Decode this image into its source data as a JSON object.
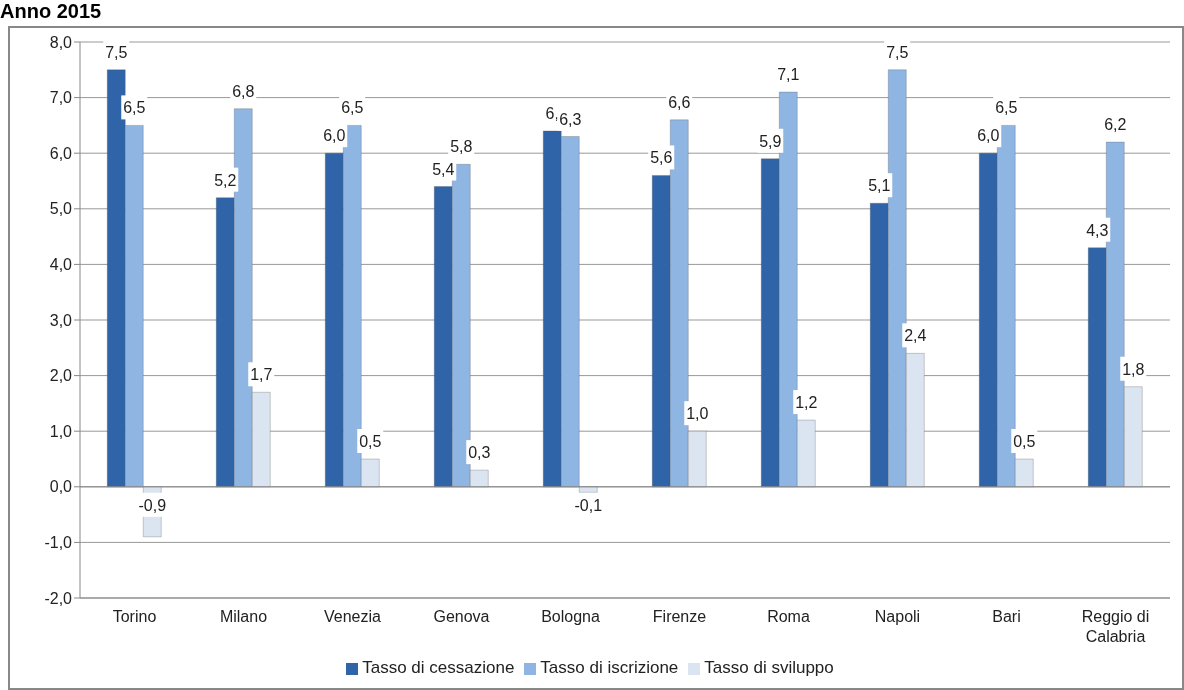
{
  "chart_data": {
    "type": "bar",
    "title": "Anno 2015",
    "categories": [
      "Torino",
      "Milano",
      "Venezia",
      "Genova",
      "Bologna",
      "Firenze",
      "Roma",
      "Napoli",
      "Bari",
      "Reggio di Calabria"
    ],
    "series": [
      {
        "name": "Tasso di cessazione",
        "color": "#2f64a8",
        "values": [
          7.5,
          5.2,
          6.0,
          5.4,
          6.4,
          5.6,
          5.9,
          5.1,
          6.0,
          4.3
        ],
        "value_labels": [
          "7,5",
          "5,2",
          "6,0",
          "5,4",
          "6,",
          "5,6",
          "5,9",
          "5,1",
          "6,0",
          "4,3"
        ]
      },
      {
        "name": "Tasso di iscrizione",
        "color": "#8fb5e3",
        "values": [
          6.5,
          6.8,
          6.5,
          5.8,
          6.3,
          6.6,
          7.1,
          7.5,
          6.5,
          6.2
        ],
        "value_labels": [
          "6,5",
          "6,8",
          "6,5",
          "5,8",
          "6,3",
          "6,6",
          "7,1",
          "7,5",
          "6,5",
          "6,2"
        ]
      },
      {
        "name": "Tasso di sviluppo",
        "color": "#dbe5f1",
        "values": [
          -0.9,
          1.7,
          0.5,
          0.3,
          -0.1,
          1.0,
          1.2,
          2.4,
          0.5,
          1.8
        ],
        "value_labels": [
          "-0,9",
          "1,7",
          "0,5",
          "0,3",
          "-0,1",
          "1,0",
          "1,2",
          "2,4",
          "0,5",
          "1,8"
        ]
      }
    ],
    "ylim": [
      -2,
      8
    ],
    "yticks": [
      {
        "value": -2,
        "label": "-2,0"
      },
      {
        "value": -1,
        "label": "-1,0"
      },
      {
        "value": 0,
        "label": "0,0"
      },
      {
        "value": 1,
        "label": "1,0"
      },
      {
        "value": 2,
        "label": "2,0"
      },
      {
        "value": 3,
        "label": "3,0"
      },
      {
        "value": 4,
        "label": "4,0"
      },
      {
        "value": 5,
        "label": "5,0"
      },
      {
        "value": 6,
        "label": "6,0"
      },
      {
        "value": 7,
        "label": "7,0"
      },
      {
        "value": 8,
        "label": "8,0"
      }
    ],
    "grid": "y",
    "legend": "bottom"
  }
}
